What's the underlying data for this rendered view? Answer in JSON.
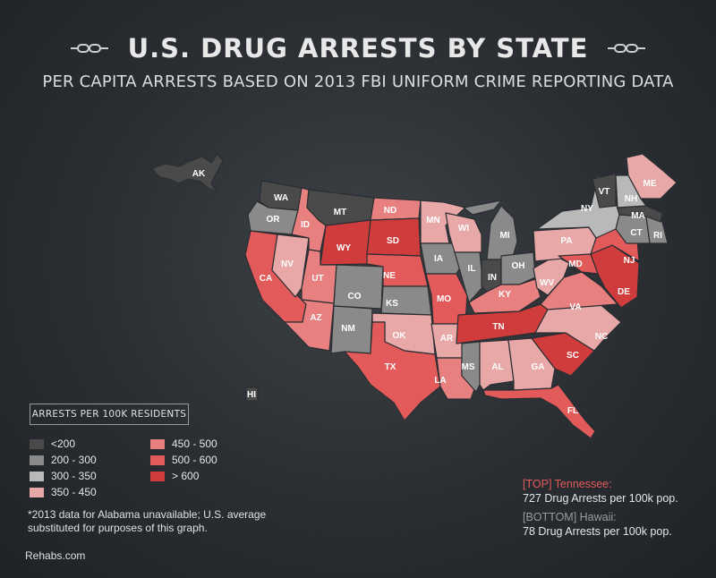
{
  "title": "U.S. DRUG ARRESTS BY STATE",
  "subtitle": "PER CAPITA ARRESTS BASED ON 2013 FBI UNIFORM CRIME REPORTING DATA",
  "legend": {
    "title": "ARRESTS PER 100K RESIDENTS",
    "items": [
      {
        "label": "<200",
        "color": "#4a4a4a"
      },
      {
        "label": "200 - 300",
        "color": "#8a8a8a"
      },
      {
        "label": "300 - 350",
        "color": "#b9b9b9"
      },
      {
        "label": "350 - 450",
        "color": "#e8a8a8"
      },
      {
        "label": "450 - 500",
        "color": "#e88080"
      },
      {
        "label": "500 - 600",
        "color": "#e35a5a"
      },
      {
        "label": "> 600",
        "color": "#d03c3c"
      }
    ]
  },
  "footnote": "*2013 data for Alabama unavailable; U.S. average substituted for purposes of this graph.",
  "credit": "Rehabs.com",
  "top_callout": {
    "head": "[TOP] Tennessee:",
    "body": "727 Drug Arrests per 100k pop."
  },
  "bottom_callout": {
    "head": "[BOTTOM] Hawaii:",
    "body": "78 Drug Arrests per 100k pop."
  },
  "states": {
    "AK": {
      "label": "AK",
      "bin": "<200"
    },
    "HI": {
      "label": "HI",
      "bin": "<200"
    },
    "WA": {
      "label": "WA",
      "bin": "<200"
    },
    "OR": {
      "label": "OR",
      "bin": "200 - 300"
    },
    "CA": {
      "label": "CA",
      "bin": "500 - 600"
    },
    "NV": {
      "label": "NV",
      "bin": "350 - 450"
    },
    "ID": {
      "label": "ID",
      "bin": "450 - 500"
    },
    "MT": {
      "label": "MT",
      "bin": "<200"
    },
    "WY": {
      "label": "WY",
      "bin": "> 600"
    },
    "UT": {
      "label": "UT",
      "bin": "450 - 500"
    },
    "AZ": {
      "label": "AZ",
      "bin": "450 - 500"
    },
    "CO": {
      "label": "CO",
      "bin": "200 - 300"
    },
    "NM": {
      "label": "NM",
      "bin": "200 - 300"
    },
    "ND": {
      "label": "ND",
      "bin": "450 - 500"
    },
    "SD": {
      "label": "SD",
      "bin": "> 600"
    },
    "NE": {
      "label": "NE",
      "bin": "500 - 600"
    },
    "KS": {
      "label": "KS",
      "bin": "200 - 300"
    },
    "OK": {
      "label": "OK",
      "bin": "350 - 450"
    },
    "TX": {
      "label": "TX",
      "bin": "500 - 600"
    },
    "MN": {
      "label": "MN",
      "bin": "350 - 450"
    },
    "IA": {
      "label": "IA",
      "bin": "200 - 300"
    },
    "MO": {
      "label": "MO",
      "bin": "500 - 600"
    },
    "AR": {
      "label": "AR",
      "bin": "350 - 450"
    },
    "LA": {
      "label": "LA",
      "bin": "450 - 500"
    },
    "WI": {
      "label": "WI",
      "bin": "350 - 450"
    },
    "IL": {
      "label": "IL",
      "bin": "200 - 300"
    },
    "MI": {
      "label": "MI",
      "bin": "200 - 300"
    },
    "IN": {
      "label": "IN",
      "bin": "<200"
    },
    "OH": {
      "label": "OH",
      "bin": "200 - 300"
    },
    "KY": {
      "label": "KY",
      "bin": "450 - 500"
    },
    "TN": {
      "label": "TN",
      "bin": "> 600"
    },
    "MS": {
      "label": "MS",
      "bin": "200 - 300"
    },
    "AL": {
      "label": "AL",
      "bin": "350 - 450"
    },
    "GA": {
      "label": "GA",
      "bin": "350 - 450"
    },
    "FL": {
      "label": "FL",
      "bin": "500 - 600"
    },
    "SC": {
      "label": "SC",
      "bin": "> 600"
    },
    "NC": {
      "label": "NC",
      "bin": "350 - 450"
    },
    "VA": {
      "label": "VA",
      "bin": "450 - 500"
    },
    "WV": {
      "label": "WV",
      "bin": "350 - 450"
    },
    "PA": {
      "label": "PA",
      "bin": "350 - 450"
    },
    "MD": {
      "label": "MD",
      "bin": "500 - 600"
    },
    "DE": {
      "label": "DE",
      "bin": "> 600"
    },
    "NJ": {
      "label": "NJ",
      "bin": "500 - 600"
    },
    "NY": {
      "label": "NY",
      "bin": "300 - 350"
    },
    "CT": {
      "label": "CT",
      "bin": "200 - 300"
    },
    "RI": {
      "label": "RI",
      "bin": "200 - 300"
    },
    "MA": {
      "label": "MA",
      "bin": "<200"
    },
    "VT": {
      "label": "VT",
      "bin": "<200"
    },
    "NH": {
      "label": "NH",
      "bin": "300 - 350"
    },
    "ME": {
      "label": "ME",
      "bin": "350 - 450"
    }
  }
}
